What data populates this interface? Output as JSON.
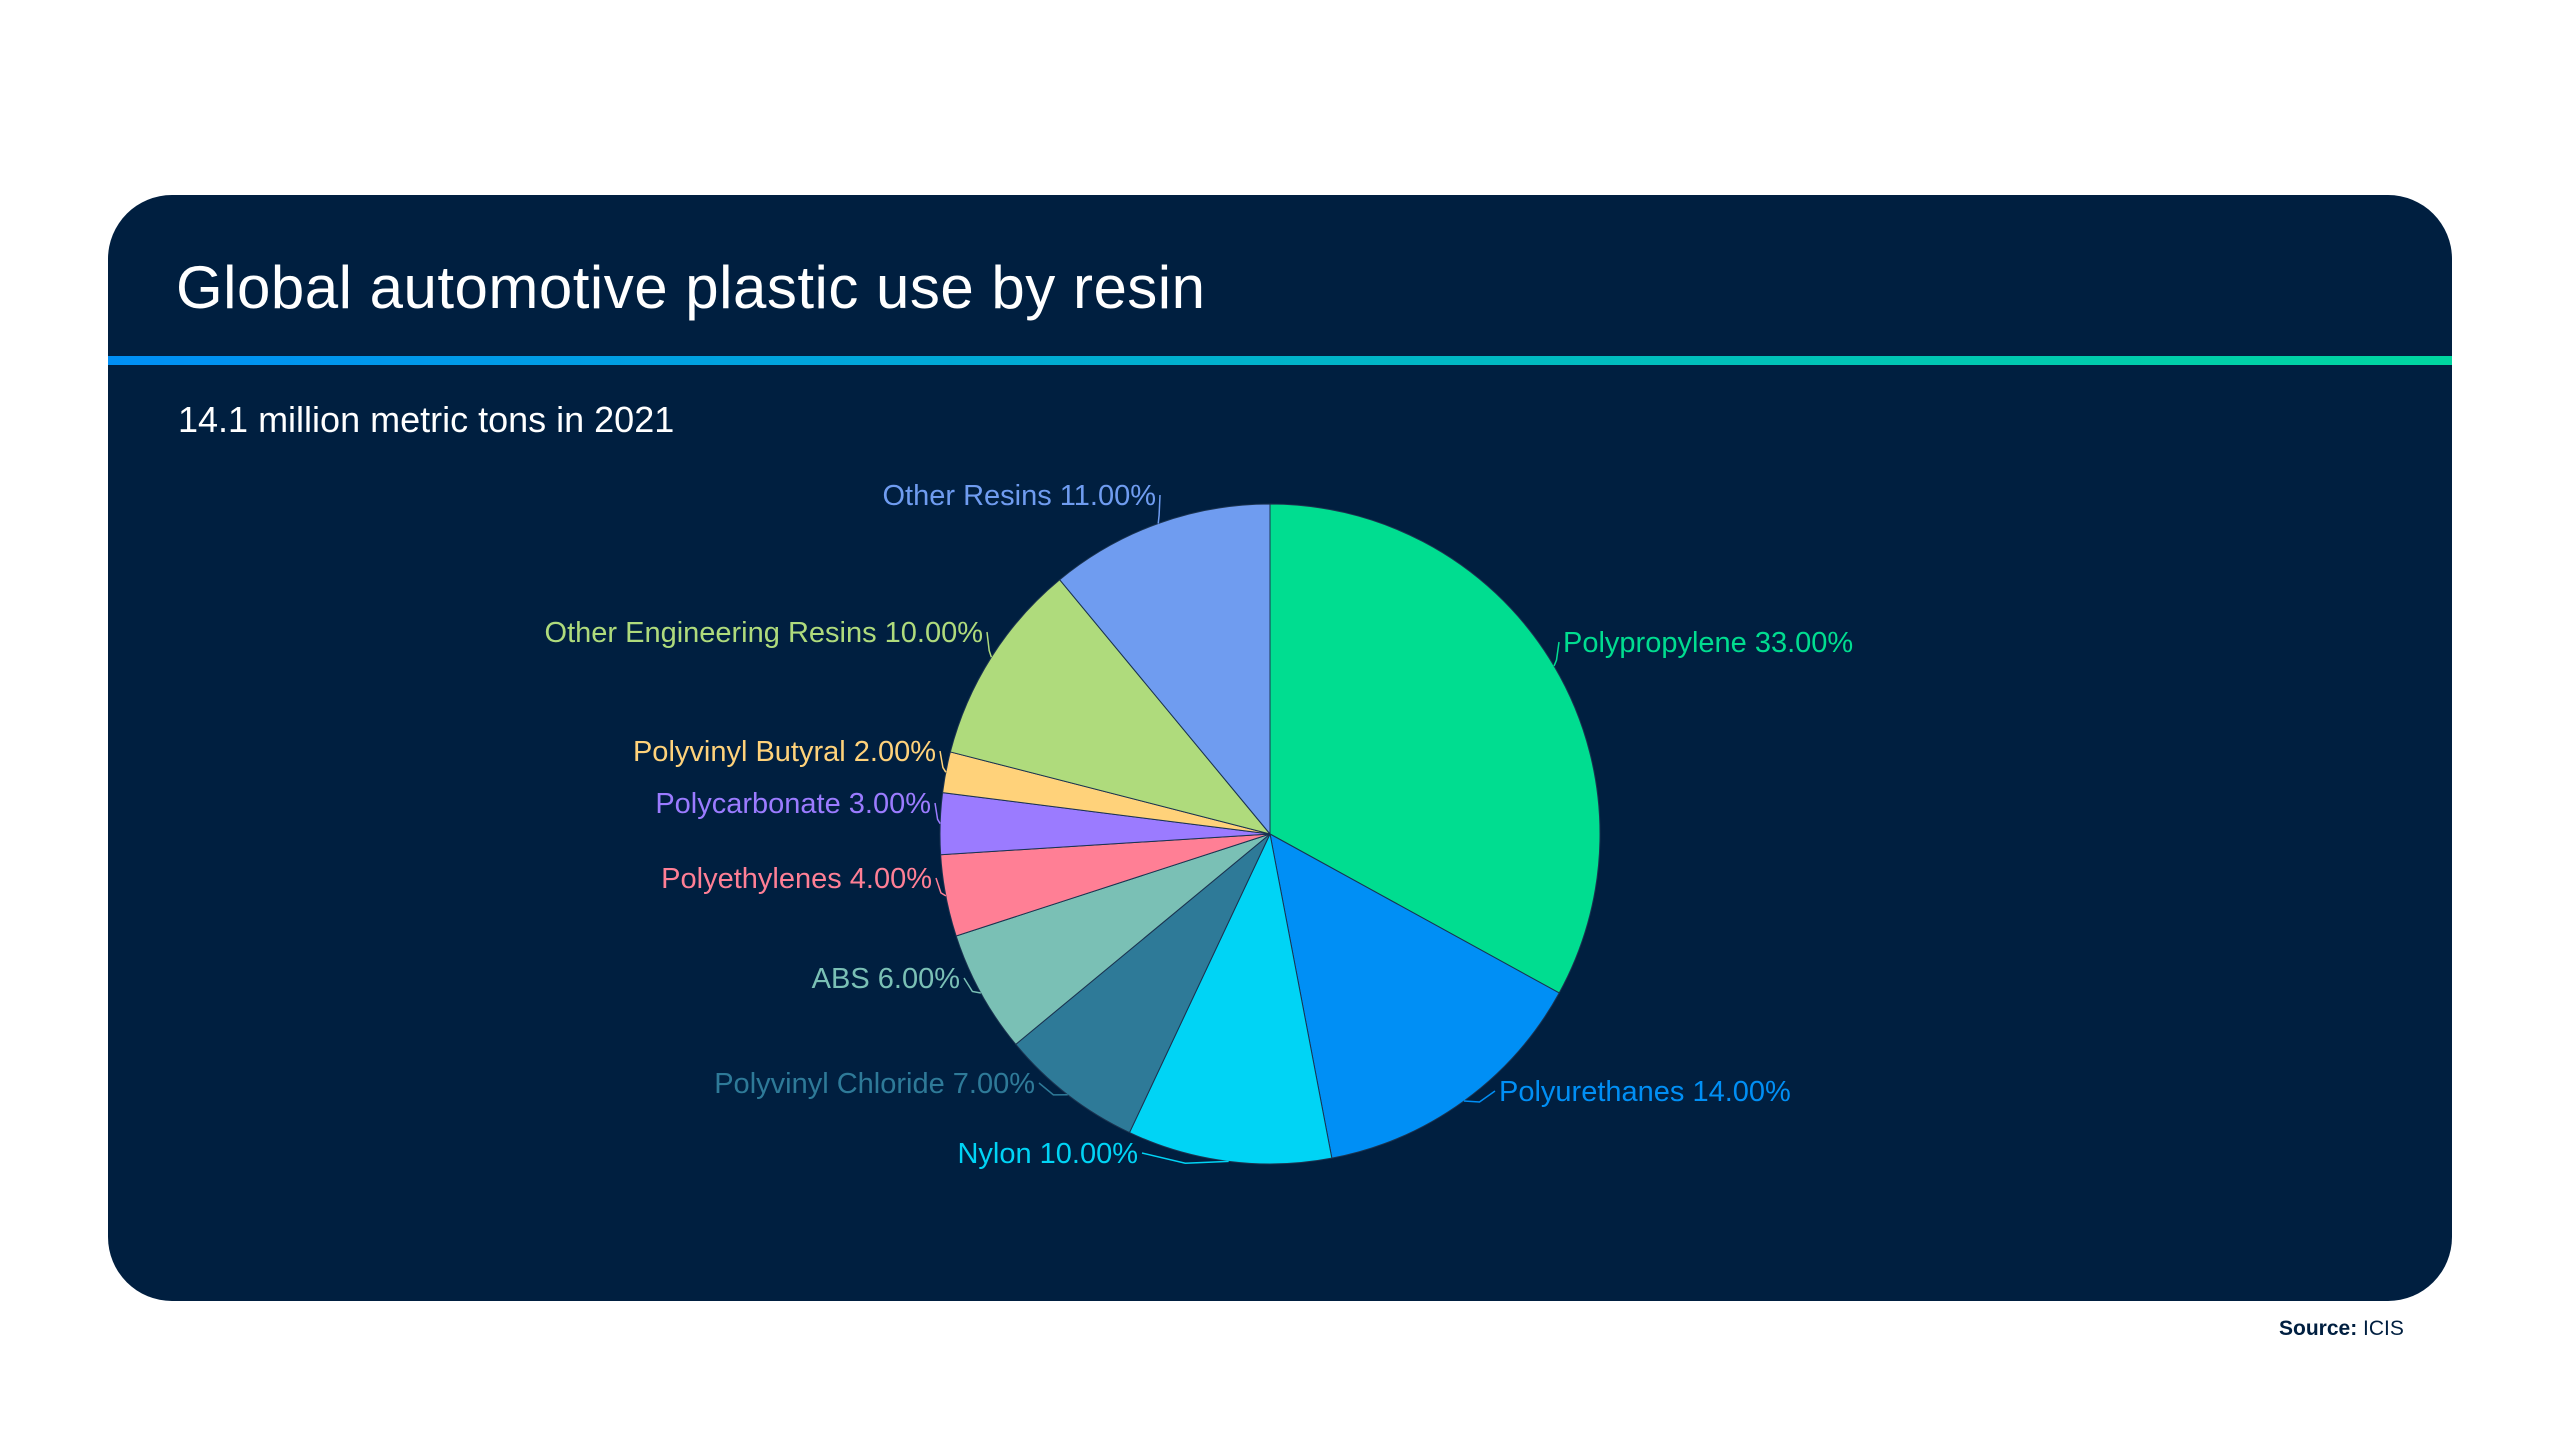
{
  "header": {
    "title": "Global automotive plastic use by resin",
    "subtitle": "14.1 million metric tons in 2021"
  },
  "footer": {
    "source_label": "Source:",
    "source_value": "ICIS"
  },
  "chart_data": {
    "type": "pie",
    "title": "Global automotive plastic use by resin",
    "subtitle": "14.1 million metric tons in 2021",
    "unit": "%",
    "slices": [
      {
        "label": "Polypropylene",
        "value": 33.0,
        "display": "Polypropylene 33.00%",
        "color": "#00dd90"
      },
      {
        "label": "Polyurethanes",
        "value": 14.0,
        "display": "Polyurethanes 14.00%",
        "color": "#008ff5"
      },
      {
        "label": "Nylon",
        "value": 10.0,
        "display": "Nylon 10.00%",
        "color": "#00d4f5"
      },
      {
        "label": "Polyvinyl Chloride",
        "value": 7.0,
        "display": "Polyvinyl Chloride 7.00%",
        "color": "#2e7a98"
      },
      {
        "label": "ABS",
        "value": 6.0,
        "display": "ABS 6.00%",
        "color": "#7ac0b5"
      },
      {
        "label": "Polyethylenes",
        "value": 4.0,
        "display": "Polyethylenes 4.00%",
        "color": "#ff7f95"
      },
      {
        "label": "Polycarbonate",
        "value": 3.0,
        "display": "Polycarbonate 3.00%",
        "color": "#9b7bff"
      },
      {
        "label": "Polyvinyl Butyral",
        "value": 2.0,
        "display": "Polyvinyl Butyral 2.00%",
        "color": "#ffd27a"
      },
      {
        "label": "Other Engineering Resins",
        "value": 10.0,
        "display": "Other Engineering Resins 10.00%",
        "color": "#afdb7c"
      },
      {
        "label": "Other Resins",
        "value": 11.0,
        "display": "Other Resins 11.00%",
        "color": "#6f9cf0"
      }
    ]
  }
}
